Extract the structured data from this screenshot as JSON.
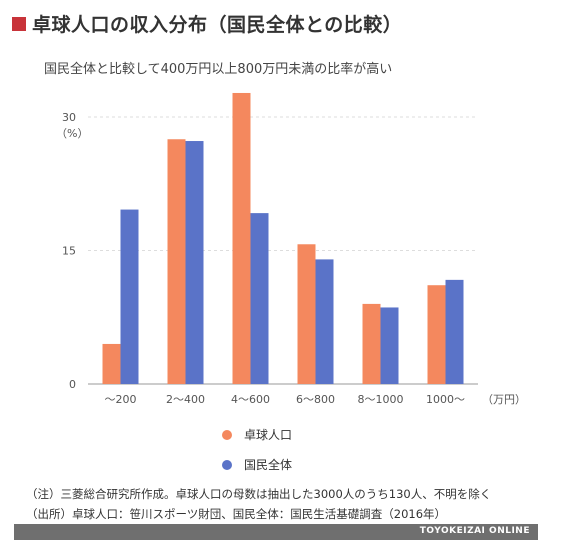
{
  "header": {
    "title": "卓球人口の収入分布（国民全体との比較）",
    "subtitle": "国民全体と比較して400万円以上800万円未満の比率が高い"
  },
  "chart_data": {
    "type": "bar",
    "categories": [
      "〜200",
      "2〜400",
      "4〜600",
      "6〜800",
      "8〜1000",
      "1000〜"
    ],
    "series": [
      {
        "name": "卓球人口",
        "color": "#f4885e",
        "values": [
          4.5,
          27.5,
          32.7,
          15.7,
          9.0,
          11.1
        ]
      },
      {
        "name": "国民全体",
        "color": "#5a73c8",
        "values": [
          19.6,
          27.3,
          19.2,
          14.0,
          8.6,
          11.7
        ]
      }
    ],
    "ylim": [
      0,
      30
    ],
    "yticks": [
      0,
      15,
      30
    ],
    "ylabel_unit": "（%）",
    "xlabel_unit": "（万円）",
    "grid": true,
    "legend_position": "bottom"
  },
  "notes": [
    "（注）三菱総合研究所作成。卓球人口の母数は抽出した3000人のうち130人、不明を除く",
    "（出所）卓球人口：笹川スポーツ財団、国民全体：国民生活基礎調査（2016年）"
  ],
  "footer": {
    "brand": "TOYOKEIZAI ONLINE"
  }
}
